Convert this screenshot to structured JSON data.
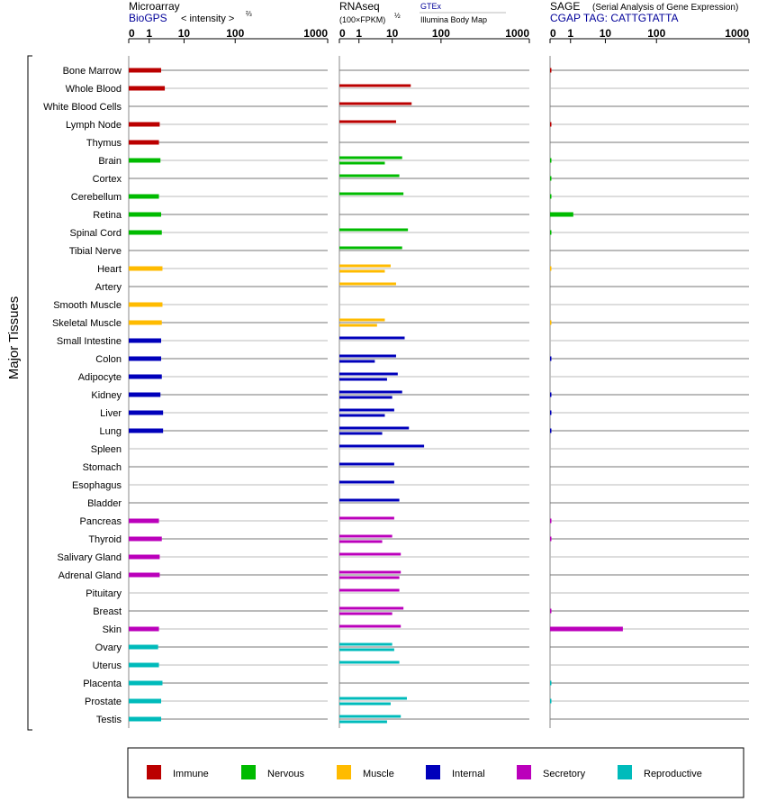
{
  "y_axis_title": "Major Tissues",
  "colors": {
    "immune": "#bb0000",
    "nervous": "#00bb00",
    "muscle": "#ffbb00",
    "internal": "#0000bb",
    "secretory": "#bb00bb",
    "reproductive": "#00bbbb"
  },
  "panels": [
    {
      "title": "Microarray",
      "subtitle": "BioGPS",
      "subtitle_extra": "< intensity >",
      "subtitle_exp": "⅔"
    },
    {
      "title": "RNAseq",
      "subtitle": "(100×FPKM)",
      "subtitle_exp": "½",
      "note1": "GTEx",
      "note2": "Illumina Body Map"
    },
    {
      "title": "SAGE",
      "subtitle_extra": "(Serial Analysis of Gene Expression)",
      "subtitle": "CGAP TAG: CATTGTATTA"
    }
  ],
  "legend": [
    {
      "key": "immune",
      "label": "Immune"
    },
    {
      "key": "nervous",
      "label": "Nervous"
    },
    {
      "key": "muscle",
      "label": "Muscle"
    },
    {
      "key": "internal",
      "label": "Internal"
    },
    {
      "key": "secretory",
      "label": "Secretory"
    },
    {
      "key": "reproductive",
      "label": "Reproductive"
    }
  ],
  "chart_data": {
    "type": "bar",
    "x_scale": "log-like",
    "x_ticks": [
      "0",
      "1",
      "10",
      "100",
      "1000"
    ],
    "x_tick_values": [
      0,
      1,
      10,
      100,
      1000
    ],
    "xlim": [
      0,
      1000
    ],
    "categories": [
      "Bone Marrow",
      "Whole Blood",
      "White Blood Cells",
      "Lymph Node",
      "Thymus",
      "Brain",
      "Cortex",
      "Cerebellum",
      "Retina",
      "Spinal Cord",
      "Tibial Nerve",
      "Heart",
      "Artery",
      "Smooth Muscle",
      "Skeletal Muscle",
      "Small Intestine",
      "Colon",
      "Adipocyte",
      "Kidney",
      "Liver",
      "Lung",
      "Spleen",
      "Stomach",
      "Esophagus",
      "Bladder",
      "Pancreas",
      "Thyroid",
      "Salivary Gland",
      "Adrenal Gland",
      "Pituitary",
      "Breast",
      "Skin",
      "Ovary",
      "Uterus",
      "Placenta",
      "Prostate",
      "Testis"
    ],
    "groups": [
      "immune",
      "immune",
      "immune",
      "immune",
      "immune",
      "nervous",
      "nervous",
      "nervous",
      "nervous",
      "nervous",
      "nervous",
      "muscle",
      "muscle",
      "muscle",
      "muscle",
      "internal",
      "internal",
      "internal",
      "internal",
      "internal",
      "internal",
      "internal",
      "internal",
      "internal",
      "internal",
      "secretory",
      "secretory",
      "secretory",
      "secretory",
      "secretory",
      "secretory",
      "secretory",
      "reproductive",
      "reproductive",
      "reproductive",
      "reproductive",
      "reproductive"
    ],
    "series": [
      {
        "name": "Microarray",
        "values": [
          2.2,
          2.8,
          null,
          2.0,
          1.9,
          2.1,
          null,
          1.9,
          2.2,
          2.3,
          null,
          2.4,
          null,
          2.4,
          2.3,
          2.2,
          2.2,
          2.3,
          2.1,
          2.5,
          2.5,
          null,
          null,
          null,
          null,
          1.9,
          2.3,
          2.0,
          2.0,
          null,
          null,
          1.9,
          1.8,
          1.9,
          2.4,
          2.2,
          2.2
        ]
      },
      {
        "name": "GTEx",
        "values": [
          null,
          24,
          25,
          12,
          null,
          16,
          14,
          17,
          null,
          21,
          16,
          9,
          12,
          null,
          6,
          18,
          12,
          13,
          16,
          11,
          22,
          45,
          11,
          11,
          14,
          11,
          10,
          15,
          15,
          14,
          17,
          15,
          10,
          14,
          null,
          20,
          15
        ]
      },
      {
        "name": "Illumina Body Map",
        "values": [
          null,
          null,
          null,
          null,
          null,
          6,
          null,
          null,
          null,
          null,
          null,
          6,
          null,
          null,
          3.5,
          null,
          3,
          7,
          10,
          6,
          5,
          null,
          null,
          null,
          null,
          null,
          5,
          null,
          14,
          null,
          10,
          null,
          11,
          null,
          null,
          9,
          7
        ]
      },
      {
        "name": "SAGE",
        "values": [
          0.05,
          null,
          null,
          0.05,
          null,
          0.05,
          0.05,
          0.05,
          1.2,
          0.05,
          null,
          0.03,
          null,
          null,
          0.03,
          null,
          0.05,
          null,
          0.05,
          0.05,
          0.05,
          null,
          null,
          null,
          null,
          0.05,
          0.05,
          null,
          null,
          null,
          0.05,
          22,
          null,
          null,
          0.05,
          0.05,
          null
        ]
      }
    ]
  }
}
